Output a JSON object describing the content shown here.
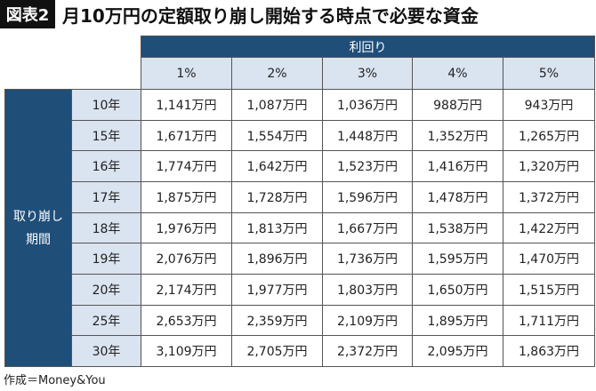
{
  "title": {
    "badge": "図表2",
    "text": "月10万円の定額取り崩し開始する時点で必要な資金"
  },
  "table": {
    "group_header": "利回り",
    "columns": [
      "1%",
      "2%",
      "3%",
      "4%",
      "5%"
    ],
    "row_group": [
      "取り崩し",
      "期間"
    ],
    "rows": [
      {
        "label": "10年",
        "cells": [
          "1,141万円",
          "1,087万円",
          "1,036万円",
          "988万円",
          "943万円"
        ]
      },
      {
        "label": "15年",
        "cells": [
          "1,671万円",
          "1,554万円",
          "1,448万円",
          "1,352万円",
          "1,265万円"
        ]
      },
      {
        "label": "16年",
        "cells": [
          "1,774万円",
          "1,642万円",
          "1,523万円",
          "1,416万円",
          "1,320万円"
        ]
      },
      {
        "label": "17年",
        "cells": [
          "1,875万円",
          "1,728万円",
          "1,596万円",
          "1,478万円",
          "1,372万円"
        ]
      },
      {
        "label": "18年",
        "cells": [
          "1,976万円",
          "1,813万円",
          "1,667万円",
          "1,538万円",
          "1,422万円"
        ]
      },
      {
        "label": "19年",
        "cells": [
          "2,076万円",
          "1,896万円",
          "1,736万円",
          "1,595万円",
          "1,470万円"
        ]
      },
      {
        "label": "20年",
        "cells": [
          "2,174万円",
          "1,977万円",
          "1,803万円",
          "1,650万円",
          "1,515万円"
        ]
      },
      {
        "label": "25年",
        "cells": [
          "2,653万円",
          "2,359万円",
          "2,109万円",
          "1,895万円",
          "1,711万円"
        ]
      },
      {
        "label": "30年",
        "cells": [
          "3,109万円",
          "2,705万円",
          "2,372万円",
          "2,095万円",
          "1,863万円"
        ]
      }
    ]
  },
  "source": "作成＝Money&You"
}
